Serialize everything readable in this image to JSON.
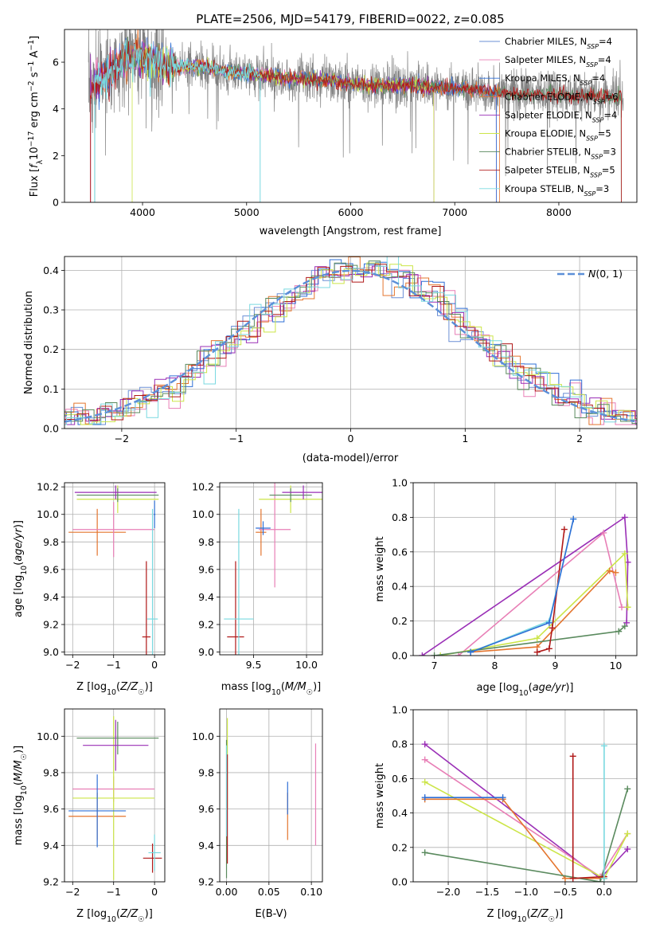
{
  "figure": {
    "title": "PLATE=2506, MJD=54179, FIBERID=0022, z=0.085"
  },
  "colors": {
    "chabrier_miles": "#6b8fd6",
    "salpeter_miles": "#e87fb6",
    "kroupa_miles": "#2f6fd6",
    "chabrier_elodie": "#e4752e",
    "salpeter_elodie": "#9a2fb6",
    "kroupa_elodie": "#cce548",
    "chabrier_stelib": "#5a8a5e",
    "salpeter_stelib": "#b01818",
    "kroupa_stelib": "#7ad9e0",
    "observed": "#808080",
    "normal_curve": "#5b8fd8"
  },
  "chart_data": [
    {
      "id": "spectrum",
      "type": "line",
      "xlabel": "wavelength [Angstrom, rest frame]",
      "ylabel": "Flux [f_λ 10^-17 erg cm^-2 s^-1 A^-1]",
      "xlim": [
        3250,
        8750
      ],
      "ylim": [
        0,
        7.4
      ],
      "xticks": [
        "4000",
        "5000",
        "6000",
        "7000",
        "8000"
      ],
      "yticks": [
        "0",
        "2",
        "4",
        "6"
      ],
      "grid": false,
      "legend_position": "right",
      "legend": [
        {
          "label": "Chabrier MILES, N",
          "sub": "SSP",
          "value": "=4",
          "color_key": "chabrier_miles"
        },
        {
          "label": "Salpeter MILES, N",
          "sub": "SSP",
          "value": "=4",
          "color_key": "salpeter_miles"
        },
        {
          "label": "Kroupa MILES, N",
          "sub": "SSP",
          "value": "=4",
          "color_key": "kroupa_miles"
        },
        {
          "label": "Chabrier ELODIE, N",
          "sub": "SSP",
          "value": "=6",
          "color_key": "chabrier_elodie"
        },
        {
          "label": "Salpeter ELODIE, N",
          "sub": "SSP",
          "value": "=4",
          "color_key": "salpeter_elodie"
        },
        {
          "label": "Kroupa ELODIE, N",
          "sub": "SSP",
          "value": "=5",
          "color_key": "kroupa_elodie"
        },
        {
          "label": "Chabrier STELIB, N",
          "sub": "SSP",
          "value": "=3",
          "color_key": "chabrier_stelib"
        },
        {
          "label": "Salpeter STELIB, N",
          "sub": "SSP",
          "value": "=5",
          "color_key": "salpeter_stelib"
        },
        {
          "label": "Kroupa STELIB, N",
          "sub": "SSP",
          "value": "=3",
          "color_key": "kroupa_stelib"
        }
      ],
      "continuum": [
        [
          3500,
          4.9
        ],
        [
          3650,
          5.4
        ],
        [
          3800,
          6.0
        ],
        [
          3950,
          6.3
        ],
        [
          4050,
          6.2
        ],
        [
          4200,
          5.9
        ],
        [
          4400,
          5.8
        ],
        [
          4600,
          5.8
        ],
        [
          4800,
          5.6
        ],
        [
          5000,
          5.5
        ],
        [
          5200,
          5.4
        ],
        [
          5400,
          5.3
        ],
        [
          5600,
          5.3
        ],
        [
          5800,
          5.2
        ],
        [
          6000,
          5.1
        ],
        [
          6200,
          5.0
        ],
        [
          6400,
          5.0
        ],
        [
          6600,
          5.0
        ],
        [
          6800,
          4.95
        ],
        [
          7000,
          4.9
        ],
        [
          7200,
          4.8
        ],
        [
          7400,
          4.7
        ]
      ],
      "model_end": [
        7400,
        8600
      ],
      "model_end_flux": [
        4.7,
        4.5
      ]
    },
    {
      "id": "residuals",
      "type": "line",
      "xlabel": "(data-model)/error",
      "ylabel": "Normed distribution",
      "xlim": [
        -2.5,
        2.5
      ],
      "ylim": [
        0,
        0.435
      ],
      "xticks": [
        "−2",
        "−1",
        "0",
        "1",
        "2"
      ],
      "yticks": [
        "0.0",
        "0.1",
        "0.2",
        "0.3",
        "0.4"
      ],
      "grid": true,
      "legend_position": "top-right",
      "legend_label": "N(0,1)",
      "series": "histograms of residuals for the 9 model fits, approximately following the standard normal"
    },
    {
      "id": "age_vs_Z",
      "type": "scatter",
      "xlabel": "Z [log10(Z/Z☉)]",
      "ylabel": "age [log10(age/yr)]",
      "xlim": [
        -2.2,
        0.25
      ],
      "ylim": [
        8.98,
        10.23
      ],
      "xticks": [
        "−2",
        "−1",
        "0"
      ],
      "yticks": [
        "9.0",
        "9.2",
        "9.4",
        "9.6",
        "9.8",
        "10.0",
        "10.2"
      ],
      "grid": true,
      "points": [
        {
          "key": "chabrier_elodie",
          "x": -1.4,
          "xerr": 0.7,
          "y": 9.87,
          "yerr": 0.17
        },
        {
          "key": "salpeter_miles",
          "x": -1.0,
          "xerr": 1.0,
          "y": 9.89,
          "yerr": 0.2
        },
        {
          "key": "kroupa_elodie",
          "x": -0.9,
          "xerr": 1.0,
          "y": 10.11,
          "yerr": 0.1
        },
        {
          "key": "chabrier_stelib",
          "x": -0.9,
          "xerr": 1.0,
          "y": 10.14,
          "yerr": 0.05
        },
        {
          "key": "salpeter_elodie",
          "x": -0.95,
          "xerr": 1.0,
          "y": 10.16,
          "yerr": 0.05
        },
        {
          "key": "salpeter_stelib",
          "x": -0.2,
          "xerr": 0.1,
          "y": 9.11,
          "yerr": 0.55
        },
        {
          "key": "kroupa_stelib",
          "x": -0.05,
          "xerr": 0.13,
          "y": 9.24,
          "yerr": 0.8
        },
        {
          "key": "kroupa_miles",
          "x": 0.0,
          "xerr": 0.02,
          "y": 10.0,
          "yerr": 0.1
        }
      ]
    },
    {
      "id": "age_vs_mass",
      "type": "scatter",
      "xlabel": "mass [log10(M/M☉)]",
      "ylabel": "",
      "xlim": [
        9.18,
        10.15
      ],
      "ylim": [
        8.98,
        10.23
      ],
      "xticks": [
        "9.5",
        "10.0"
      ],
      "yticks": [
        "9.0",
        "9.2",
        "9.4",
        "9.6",
        "9.8",
        "10.0",
        "10.2"
      ],
      "grid": true,
      "points": [
        {
          "key": "chabrier_elodie",
          "x": 9.57,
          "xerr": 0.05,
          "y": 9.87,
          "yerr": 0.17
        },
        {
          "key": "salpeter_miles",
          "x": 9.7,
          "xerr": 0.15,
          "y": 9.89,
          "yerr": 0.42
        },
        {
          "key": "kroupa_elodie",
          "x": 9.85,
          "xerr": 0.3,
          "y": 10.11,
          "yerr": 0.1
        },
        {
          "key": "chabrier_stelib",
          "x": 9.85,
          "xerr": 0.2,
          "y": 10.14,
          "yerr": 0.05
        },
        {
          "key": "salpeter_elodie",
          "x": 9.97,
          "xerr": 0.2,
          "y": 10.16,
          "yerr": 0.05
        },
        {
          "key": "salpeter_stelib",
          "x": 9.33,
          "xerr": 0.08,
          "y": 9.11,
          "yerr": 0.55
        },
        {
          "key": "kroupa_stelib",
          "x": 9.36,
          "xerr": 0.14,
          "y": 9.24,
          "yerr": 0.8
        },
        {
          "key": "kroupa_miles",
          "x": 9.59,
          "xerr": 0.07,
          "y": 9.9,
          "yerr": 0.05
        }
      ]
    },
    {
      "id": "weight_vs_age",
      "type": "line",
      "xlabel": "age [log10(age/yr)]",
      "ylabel": "mass weight",
      "xlim": [
        6.65,
        10.35
      ],
      "ylim": [
        0,
        1
      ],
      "xticks": [
        "7",
        "8",
        "9",
        "10"
      ],
      "yticks": [
        "0.0",
        "0.2",
        "0.4",
        "0.6",
        "0.8",
        "1.0"
      ],
      "grid": true,
      "series": [
        {
          "key": "salpeter_elodie",
          "points": [
            [
              6.8,
              0.0
            ],
            [
              10.15,
              0.8
            ],
            [
              10.2,
              0.54
            ],
            [
              10.18,
              0.19
            ]
          ]
        },
        {
          "key": "salpeter_miles",
          "points": [
            [
              7.4,
              0.0
            ],
            [
              9.8,
              0.71
            ],
            [
              10.1,
              0.28
            ]
          ]
        },
        {
          "key": "kroupa_elodie",
          "points": [
            [
              7.1,
              0.0
            ],
            [
              8.7,
              0.1
            ],
            [
              10.15,
              0.59
            ],
            [
              10.2,
              0.28
            ]
          ]
        },
        {
          "key": "chabrier_elodie",
          "points": [
            [
              7.6,
              0.02
            ],
            [
              8.7,
              0.05
            ],
            [
              9.9,
              0.49
            ],
            [
              10.0,
              0.48
            ]
          ]
        },
        {
          "key": "chabrier_stelib",
          "points": [
            [
              7.0,
              0.0
            ],
            [
              10.05,
              0.14
            ],
            [
              10.15,
              0.17
            ]
          ]
        },
        {
          "key": "salpeter_stelib",
          "points": [
            [
              8.7,
              0.02
            ],
            [
              8.9,
              0.04
            ],
            [
              8.95,
              0.16
            ],
            [
              9.15,
              0.73
            ]
          ]
        },
        {
          "key": "kroupa_stelib",
          "points": [
            [
              7.6,
              0.02
            ],
            [
              8.9,
              0.2
            ],
            [
              9.3,
              0.79
            ]
          ]
        },
        {
          "key": "kroupa_miles",
          "points": [
            [
              7.6,
              0.02
            ],
            [
              8.9,
              0.19
            ],
            [
              9.3,
              0.79
            ]
          ]
        }
      ]
    },
    {
      "id": "mass_vs_Z",
      "type": "scatter",
      "xlabel": "Z [log10(Z/Z☉)]",
      "ylabel": "mass [log10(M/M☉)]",
      "xlim": [
        -2.2,
        0.25
      ],
      "ylim": [
        9.2,
        10.15
      ],
      "xticks": [
        "−2",
        "−1",
        "0"
      ],
      "yticks": [
        "9.2",
        "9.4",
        "9.6",
        "9.8",
        "10.0"
      ],
      "grid": true,
      "points": [
        {
          "key": "chabrier_elodie",
          "x": -1.4,
          "xerr": 0.7,
          "y": 9.56,
          "yerr": 0.13
        },
        {
          "key": "salpeter_miles",
          "x": -1.0,
          "xerr": 1.0,
          "y": 9.71,
          "yerr": 0.07
        },
        {
          "key": "kroupa_elodie",
          "x": -1.0,
          "xerr": 1.0,
          "y": 9.66,
          "yerr": 0.45
        },
        {
          "key": "kroupa_miles",
          "x": -1.4,
          "xerr": 0.7,
          "y": 9.59,
          "yerr": 0.2
        },
        {
          "key": "chabrier_stelib",
          "x": -0.9,
          "xerr": 1.0,
          "y": 9.99,
          "yerr": 0.09
        },
        {
          "key": "salpeter_elodie",
          "x": -0.95,
          "xerr": 0.8,
          "y": 9.95,
          "yerr": 0.14
        },
        {
          "key": "salpeter_stelib",
          "x": -0.05,
          "xerr": 0.23,
          "y": 9.33,
          "yerr": 0.08
        },
        {
          "key": "kroupa_stelib",
          "x": 0.0,
          "xerr": 0.15,
          "y": 9.36,
          "yerr": 0.1
        }
      ]
    },
    {
      "id": "mass_vs_ebv",
      "type": "scatter",
      "xlabel": "E(B-V)",
      "ylabel": "",
      "xlim": [
        -0.008,
        0.113
      ],
      "ylim": [
        9.2,
        10.15
      ],
      "xticks": [
        "0.00",
        "0.05",
        "0.10"
      ],
      "yticks": [
        "9.2",
        "9.4",
        "9.6",
        "9.8",
        "10.0"
      ],
      "grid": true,
      "points": [
        {
          "key": "chabrier_elodie",
          "x": 0.072,
          "y": 9.56,
          "yerr": 0.13
        },
        {
          "key": "kroupa_miles",
          "x": 0.072,
          "y": 9.66,
          "yerr": 0.09
        },
        {
          "key": "salpeter_miles",
          "x": 0.105,
          "y": 9.68,
          "yerr": 0.28
        },
        {
          "key": "kroupa_elodie",
          "x": 0.001,
          "y": 9.85,
          "yerr": 0.25
        },
        {
          "key": "chabrier_stelib",
          "x": 0.0,
          "y": 9.6,
          "yerr": 0.38
        },
        {
          "key": "salpeter_stelib",
          "x": 0.001,
          "y": 9.6,
          "yerr": 0.3
        },
        {
          "key": "kroupa_stelib",
          "x": 0.0,
          "y": 9.7,
          "yerr": 0.25
        }
      ]
    },
    {
      "id": "weight_vs_Z",
      "type": "line",
      "xlabel": "Z [log10(Z/Z☉)]",
      "ylabel": "mass weight",
      "xlim": [
        -2.45,
        0.42
      ],
      "ylim": [
        0,
        1
      ],
      "xticks": [
        "−2.0",
        "−1.5",
        "−1.0",
        "−0.5",
        "0.0"
      ],
      "yticks": [
        "0.0",
        "0.2",
        "0.4",
        "0.6",
        "0.8",
        "1.0"
      ],
      "grid": true,
      "series": [
        {
          "key": "salpeter_elodie",
          "points": [
            [
              -2.3,
              0.8
            ],
            [
              -0.05,
              0.02
            ],
            [
              0.3,
              0.19
            ]
          ]
        },
        {
          "key": "salpeter_miles",
          "points": [
            [
              -2.3,
              0.71
            ],
            [
              -0.05,
              0.03
            ],
            [
              0.3,
              0.28
            ]
          ]
        },
        {
          "key": "kroupa_elodie",
          "points": [
            [
              -2.3,
              0.58
            ],
            [
              0.0,
              0.02
            ],
            [
              0.3,
              0.28
            ]
          ]
        },
        {
          "key": "chabrier_elodie",
          "points": [
            [
              -2.3,
              0.48
            ],
            [
              -1.3,
              0.48
            ],
            [
              -0.5,
              0.02
            ],
            [
              0.0,
              0.02
            ]
          ]
        },
        {
          "key": "kroupa_miles",
          "points": [
            [
              -2.3,
              0.49
            ],
            [
              -1.3,
              0.49
            ]
          ]
        },
        {
          "key": "chabrier_stelib",
          "points": [
            [
              -2.3,
              0.17
            ],
            [
              -0.05,
              0.0
            ],
            [
              0.3,
              0.54
            ]
          ]
        },
        {
          "key": "salpeter_stelib",
          "points": [
            [
              -0.4,
              0.73
            ],
            [
              -0.4,
              0.02
            ],
            [
              0.0,
              0.03
            ]
          ]
        },
        {
          "key": "kroupa_stelib",
          "points": [
            [
              0.0,
              0.79
            ],
            [
              0.0,
              0.02
            ]
          ]
        }
      ]
    }
  ]
}
